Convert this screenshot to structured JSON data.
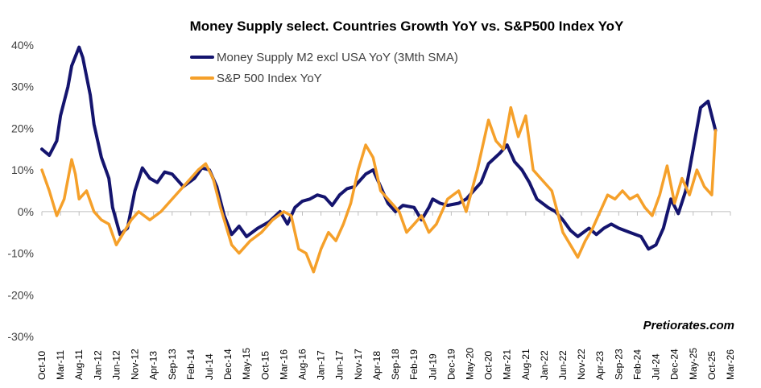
{
  "chart_data": {
    "type": "line",
    "title": "Money Supply select. Countries Growth YoY vs. S&P500 Index YoY",
    "xlabel": "",
    "ylabel": "",
    "ylim": [
      -30,
      40
    ],
    "yticks": [
      -30,
      -20,
      -10,
      0,
      10,
      20,
      30,
      40
    ],
    "ytick_labels": [
      "-30%",
      "-20%",
      "-10%",
      "0%",
      "10%",
      "20%",
      "30%",
      "40%"
    ],
    "xlim": [
      "2010-10",
      "2026-03"
    ],
    "xtick_dates": [
      "2010-10",
      "2011-03",
      "2011-08",
      "2012-01",
      "2012-06",
      "2012-11",
      "2013-04",
      "2013-09",
      "2014-02",
      "2014-07",
      "2014-12",
      "2015-05",
      "2015-10",
      "2016-03",
      "2016-08",
      "2017-01",
      "2017-06",
      "2017-11",
      "2018-04",
      "2018-09",
      "2019-02",
      "2019-07",
      "2019-12",
      "2020-05",
      "2020-10",
      "2021-03",
      "2021-08",
      "2022-01",
      "2022-06",
      "2022-11",
      "2023-04",
      "2023-09",
      "2024-02",
      "2024-07",
      "2024-12",
      "2025-05",
      "2025-10",
      "2026-03"
    ],
    "xtick_labels": [
      "Oct-10",
      "Mar-11",
      "Aug-11",
      "Jan-12",
      "Jun-12",
      "Nov-12",
      "Apr-13",
      "Sep-13",
      "Feb-14",
      "Jul-14",
      "Dec-14",
      "May-15",
      "Oct-15",
      "Mar-16",
      "Aug-16",
      "Jan-17",
      "Jun-17",
      "Nov-17",
      "Apr-18",
      "Sep-18",
      "Feb-19",
      "Jul-19",
      "Dec-19",
      "May-20",
      "Oct-20",
      "Mar-21",
      "Aug-21",
      "Jan-22",
      "Jun-22",
      "Nov-22",
      "Apr-23",
      "Sep-23",
      "Feb-24",
      "Jul-24",
      "Dec-24",
      "May-25",
      "Oct-25",
      "Mar-26"
    ],
    "grid": false,
    "legend_position": "top-center",
    "series": [
      {
        "name": "Money Supply M2 excl USA YoY (3Mth SMA)",
        "color": "#14146e",
        "points": [
          [
            "2010-10",
            15
          ],
          [
            "2010-12",
            13.5
          ],
          [
            "2011-02",
            17
          ],
          [
            "2011-03",
            23
          ],
          [
            "2011-05",
            30
          ],
          [
            "2011-06",
            35
          ],
          [
            "2011-08",
            39.5
          ],
          [
            "2011-09",
            37
          ],
          [
            "2011-11",
            28
          ],
          [
            "2011-12",
            21
          ],
          [
            "2012-02",
            13
          ],
          [
            "2012-04",
            8
          ],
          [
            "2012-05",
            1
          ],
          [
            "2012-07",
            -5.5
          ],
          [
            "2012-09",
            -4
          ],
          [
            "2012-11",
            5
          ],
          [
            "2013-01",
            10.5
          ],
          [
            "2013-03",
            8
          ],
          [
            "2013-05",
            7
          ],
          [
            "2013-07",
            9.5
          ],
          [
            "2013-09",
            9
          ],
          [
            "2013-12",
            6
          ],
          [
            "2014-03",
            8
          ],
          [
            "2014-05",
            10.5
          ],
          [
            "2014-07",
            10
          ],
          [
            "2014-09",
            6
          ],
          [
            "2014-11",
            -1
          ],
          [
            "2015-01",
            -5.5
          ],
          [
            "2015-03",
            -3.5
          ],
          [
            "2015-05",
            -6
          ],
          [
            "2015-08",
            -4
          ],
          [
            "2015-11",
            -2.5
          ],
          [
            "2016-02",
            0
          ],
          [
            "2016-04",
            -3
          ],
          [
            "2016-06",
            1
          ],
          [
            "2016-08",
            2.5
          ],
          [
            "2016-10",
            3
          ],
          [
            "2016-12",
            4
          ],
          [
            "2017-02",
            3.5
          ],
          [
            "2017-04",
            1.5
          ],
          [
            "2017-06",
            4
          ],
          [
            "2017-08",
            5.5
          ],
          [
            "2017-10",
            6
          ],
          [
            "2018-01",
            9
          ],
          [
            "2018-03",
            10
          ],
          [
            "2018-05",
            6
          ],
          [
            "2018-07",
            2
          ],
          [
            "2018-09",
            0
          ],
          [
            "2018-11",
            1.5
          ],
          [
            "2019-02",
            1
          ],
          [
            "2019-04",
            -2
          ],
          [
            "2019-06",
            1
          ],
          [
            "2019-07",
            3
          ],
          [
            "2019-09",
            2
          ],
          [
            "2019-11",
            1.5
          ],
          [
            "2020-02",
            2
          ],
          [
            "2020-04",
            3
          ],
          [
            "2020-06",
            5
          ],
          [
            "2020-08",
            7
          ],
          [
            "2020-10",
            11.5
          ],
          [
            "2021-01",
            14
          ],
          [
            "2021-03",
            16
          ],
          [
            "2021-05",
            12
          ],
          [
            "2021-07",
            10
          ],
          [
            "2021-09",
            7
          ],
          [
            "2021-11",
            3
          ],
          [
            "2022-02",
            1
          ],
          [
            "2022-04",
            0
          ],
          [
            "2022-06",
            -2
          ],
          [
            "2022-08",
            -4.5
          ],
          [
            "2022-10",
            -6
          ],
          [
            "2023-01",
            -4
          ],
          [
            "2023-03",
            -5.5
          ],
          [
            "2023-05",
            -4
          ],
          [
            "2023-07",
            -3
          ],
          [
            "2023-09",
            -4
          ],
          [
            "2023-12",
            -5
          ],
          [
            "2024-03",
            -6
          ],
          [
            "2024-05",
            -9
          ],
          [
            "2024-07",
            -8
          ],
          [
            "2024-09",
            -4
          ],
          [
            "2024-11",
            3
          ],
          [
            "2025-01",
            -0.5
          ],
          [
            "2025-03",
            5
          ],
          [
            "2025-05",
            15
          ],
          [
            "2025-07",
            25
          ],
          [
            "2025-09",
            26.5
          ],
          [
            "2025-11",
            19.5
          ]
        ]
      },
      {
        "name": "S&P 500 Index YoY",
        "color": "#f5a02a",
        "points": [
          [
            "2010-10",
            10
          ],
          [
            "2010-12",
            5
          ],
          [
            "2011-02",
            -1
          ],
          [
            "2011-04",
            3
          ],
          [
            "2011-06",
            12.5
          ],
          [
            "2011-07",
            9
          ],
          [
            "2011-08",
            3
          ],
          [
            "2011-10",
            5
          ],
          [
            "2011-12",
            0
          ],
          [
            "2012-02",
            -2
          ],
          [
            "2012-04",
            -3
          ],
          [
            "2012-06",
            -8
          ],
          [
            "2012-08",
            -5
          ],
          [
            "2012-10",
            -2
          ],
          [
            "2012-12",
            0
          ],
          [
            "2013-03",
            -2
          ],
          [
            "2013-06",
            0
          ],
          [
            "2013-08",
            2
          ],
          [
            "2013-11",
            5
          ],
          [
            "2014-02",
            8
          ],
          [
            "2014-04",
            10
          ],
          [
            "2014-06",
            11.5
          ],
          [
            "2014-08",
            8
          ],
          [
            "2014-10",
            1
          ],
          [
            "2015-01",
            -8
          ],
          [
            "2015-03",
            -10
          ],
          [
            "2015-06",
            -7
          ],
          [
            "2015-09",
            -5
          ],
          [
            "2015-12",
            -2
          ],
          [
            "2016-03",
            0
          ],
          [
            "2016-05",
            -1
          ],
          [
            "2016-07",
            -9
          ],
          [
            "2016-09",
            -10
          ],
          [
            "2016-11",
            -14.5
          ],
          [
            "2017-01",
            -9
          ],
          [
            "2017-03",
            -5
          ],
          [
            "2017-05",
            -7
          ],
          [
            "2017-07",
            -3
          ],
          [
            "2017-09",
            2
          ],
          [
            "2017-11",
            10
          ],
          [
            "2018-01",
            16
          ],
          [
            "2018-03",
            13
          ],
          [
            "2018-05",
            5
          ],
          [
            "2018-07",
            3
          ],
          [
            "2018-10",
            0
          ],
          [
            "2018-12",
            -5
          ],
          [
            "2019-02",
            -3
          ],
          [
            "2019-04",
            -1
          ],
          [
            "2019-06",
            -5
          ],
          [
            "2019-08",
            -3
          ],
          [
            "2019-11",
            3
          ],
          [
            "2020-02",
            5
          ],
          [
            "2020-04",
            0
          ],
          [
            "2020-07",
            10
          ],
          [
            "2020-10",
            22
          ],
          [
            "2020-12",
            17
          ],
          [
            "2021-02",
            15
          ],
          [
            "2021-04",
            25
          ],
          [
            "2021-06",
            18
          ],
          [
            "2021-08",
            23
          ],
          [
            "2021-10",
            10
          ],
          [
            "2021-12",
            8
          ],
          [
            "2022-03",
            5
          ],
          [
            "2022-06",
            -5
          ],
          [
            "2022-08",
            -8
          ],
          [
            "2022-10",
            -11
          ],
          [
            "2022-12",
            -7
          ],
          [
            "2023-02",
            -4
          ],
          [
            "2023-04",
            0
          ],
          [
            "2023-06",
            4
          ],
          [
            "2023-08",
            3
          ],
          [
            "2023-10",
            5
          ],
          [
            "2023-12",
            3
          ],
          [
            "2024-02",
            4
          ],
          [
            "2024-04",
            1
          ],
          [
            "2024-06",
            -1
          ],
          [
            "2024-08",
            4
          ],
          [
            "2024-10",
            11
          ],
          [
            "2024-12",
            2
          ],
          [
            "2025-02",
            8
          ],
          [
            "2025-04",
            4
          ],
          [
            "2025-06",
            10
          ],
          [
            "2025-08",
            6
          ],
          [
            "2025-10",
            4
          ],
          [
            "2025-11",
            19.5
          ]
        ]
      }
    ]
  },
  "watermark": "Pretiorates.com"
}
